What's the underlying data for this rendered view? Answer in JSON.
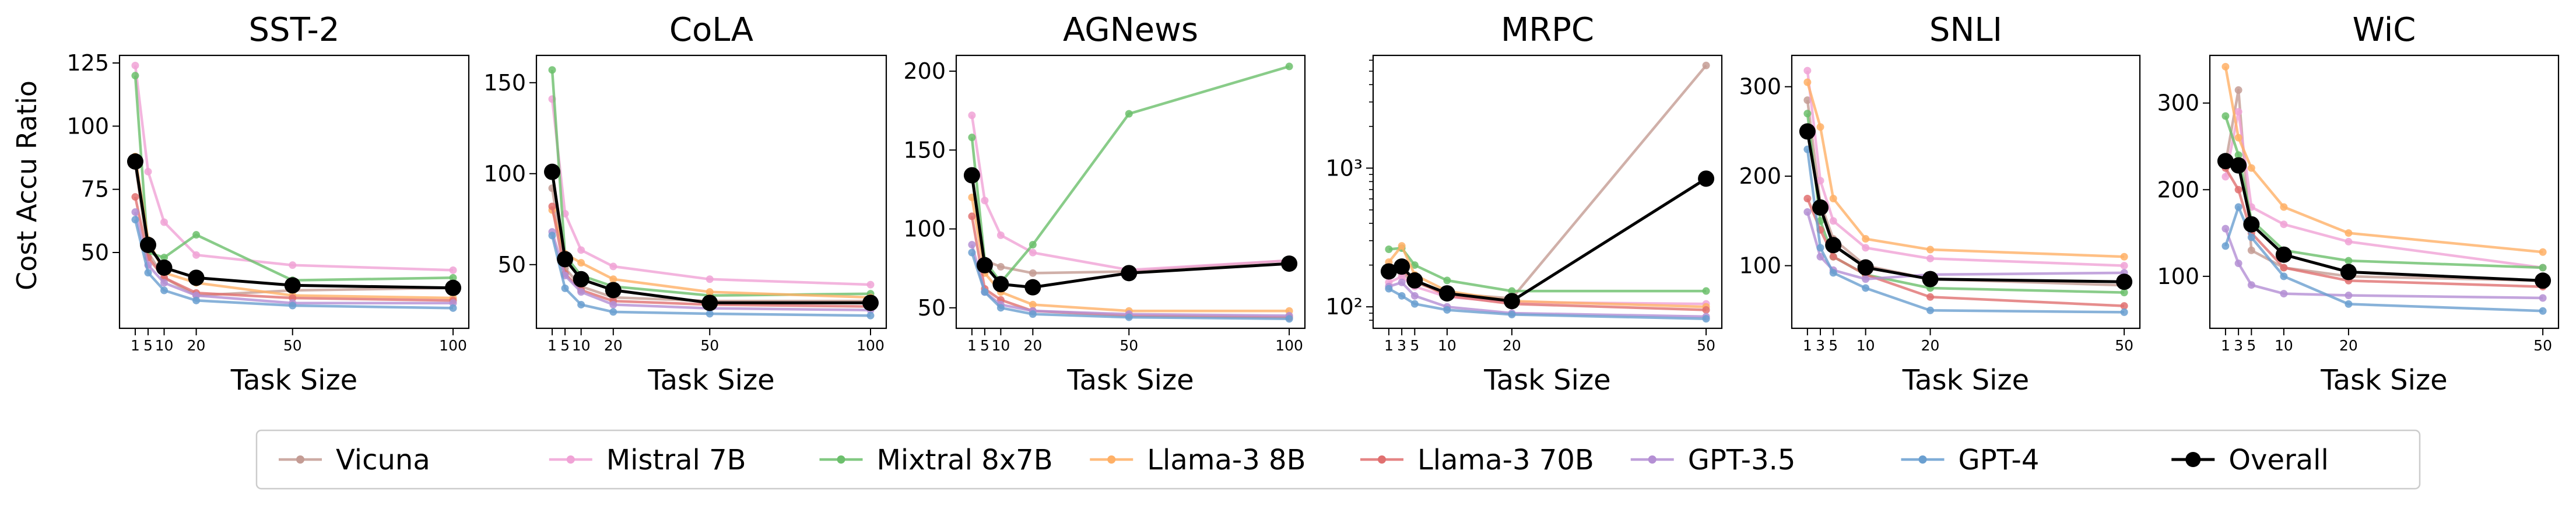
{
  "figure": {
    "shared_ylabel": "Cost Accu Ratio",
    "xlabel": "Task Size"
  },
  "legend": {
    "placement": "bottom-center",
    "entries": [
      {
        "label": "Vicuna",
        "color": "#c49c94"
      },
      {
        "label": "Mistral 7B",
        "color": "#f0a3d6"
      },
      {
        "label": "Mixtral 8x7B",
        "color": "#6cbf6c"
      },
      {
        "label": "Llama-3 8B",
        "color": "#ffb066"
      },
      {
        "label": "Llama-3 70B",
        "color": "#e07070"
      },
      {
        "label": "GPT-3.5",
        "color": "#b48fd4"
      },
      {
        "label": "GPT-4",
        "color": "#6a9fd0"
      },
      {
        "label": "Overall",
        "color": "#000000"
      }
    ]
  },
  "chart_data": [
    {
      "type": "line",
      "title": "SST-2",
      "xlabel": "Task Size",
      "ylabel": "Cost Accu Ratio",
      "x": [
        1,
        5,
        10,
        20,
        50,
        100
      ],
      "xticks": [
        "1",
        "5",
        "10",
        "20",
        "50",
        "100"
      ],
      "ylim": [
        20,
        128
      ],
      "yscale": "linear",
      "yticks": [
        50,
        75,
        100,
        125
      ],
      "ytick_labels": [
        "50",
        "75",
        "100",
        "125"
      ],
      "grid": false,
      "series": [
        {
          "name": "Vicuna",
          "color": "#c49c94",
          "values": [
            85,
            50,
            40,
            33,
            35,
            36
          ]
        },
        {
          "name": "Mistral 7B",
          "color": "#f0a3d6",
          "values": [
            124,
            82,
            62,
            49,
            45,
            43
          ]
        },
        {
          "name": "Mixtral 8x7B",
          "color": "#6cbf6c",
          "values": [
            120,
            50,
            48,
            57,
            39,
            40
          ]
        },
        {
          "name": "Llama-3 8B",
          "color": "#ffb066",
          "values": [
            88,
            55,
            42,
            38,
            33,
            32
          ]
        },
        {
          "name": "Llama-3 70B",
          "color": "#e07070",
          "values": [
            72,
            48,
            40,
            34,
            32,
            31
          ]
        },
        {
          "name": "GPT-3.5",
          "color": "#b48fd4",
          "values": [
            66,
            45,
            38,
            33,
            30,
            30
          ]
        },
        {
          "name": "GPT-4",
          "color": "#6a9fd0",
          "values": [
            63,
            42,
            35,
            31,
            29,
            28
          ]
        },
        {
          "name": "Overall",
          "color": "#000000",
          "values": [
            86,
            53,
            44,
            40,
            37,
            36
          ]
        }
      ]
    },
    {
      "type": "line",
      "title": "CoLA",
      "xlabel": "Task Size",
      "ylabel": "",
      "x": [
        1,
        5,
        10,
        20,
        50,
        100
      ],
      "xticks": [
        "1",
        "5",
        "10",
        "20",
        "50",
        "100"
      ],
      "ylim": [
        15,
        165
      ],
      "yscale": "linear",
      "yticks": [
        50,
        100,
        150
      ],
      "ytick_labels": [
        "50",
        "100",
        "150"
      ],
      "grid": false,
      "series": [
        {
          "name": "Vicuna",
          "color": "#c49c94",
          "values": [
            92,
            48,
            38,
            32,
            30,
            30
          ]
        },
        {
          "name": "Mistral 7B",
          "color": "#f0a3d6",
          "values": [
            141,
            78,
            58,
            49,
            42,
            39
          ]
        },
        {
          "name": "Mixtral 8x7B",
          "color": "#6cbf6c",
          "values": [
            157,
            55,
            44,
            38,
            33,
            34
          ]
        },
        {
          "name": "Llama-3 8B",
          "color": "#ffb066",
          "values": [
            80,
            56,
            51,
            42,
            35,
            32
          ]
        },
        {
          "name": "Llama-3 70B",
          "color": "#e07070",
          "values": [
            82,
            45,
            36,
            30,
            28,
            27
          ]
        },
        {
          "name": "GPT-3.5",
          "color": "#b48fd4",
          "values": [
            68,
            44,
            35,
            28,
            26,
            25
          ]
        },
        {
          "name": "GPT-4",
          "color": "#6a9fd0",
          "values": [
            66,
            37,
            28,
            24,
            23,
            22
          ]
        },
        {
          "name": "Overall",
          "color": "#000000",
          "values": [
            101,
            53,
            42,
            36,
            29,
            29
          ]
        }
      ]
    },
    {
      "type": "line",
      "title": "AGNews",
      "xlabel": "Task Size",
      "ylabel": "",
      "x": [
        1,
        5,
        10,
        20,
        50,
        100
      ],
      "xticks": [
        "1",
        "5",
        "10",
        "20",
        "50",
        "100"
      ],
      "ylim": [
        37,
        210
      ],
      "yscale": "linear",
      "yticks": [
        50,
        100,
        150,
        200
      ],
      "ytick_labels": [
        "50",
        "100",
        "150",
        "200"
      ],
      "grid": false,
      "series": [
        {
          "name": "Vicuna",
          "color": "#c49c94",
          "values": [
            135,
            80,
            76,
            72,
            73,
            80
          ]
        },
        {
          "name": "Mistral 7B",
          "color": "#f0a3d6",
          "values": [
            172,
            118,
            96,
            85,
            74,
            80
          ]
        },
        {
          "name": "Mixtral 8x7B",
          "color": "#6cbf6c",
          "values": [
            158,
            80,
            66,
            90,
            173,
            203
          ]
        },
        {
          "name": "Llama-3 8B",
          "color": "#ffb066",
          "values": [
            120,
            72,
            60,
            52,
            48,
            48
          ]
        },
        {
          "name": "Llama-3 70B",
          "color": "#e07070",
          "values": [
            108,
            62,
            55,
            48,
            45,
            44
          ]
        },
        {
          "name": "GPT-3.5",
          "color": "#b48fd4",
          "values": [
            90,
            60,
            52,
            48,
            46,
            45
          ]
        },
        {
          "name": "GPT-4",
          "color": "#6a9fd0",
          "values": [
            85,
            60,
            50,
            46,
            44,
            43
          ]
        },
        {
          "name": "Overall",
          "color": "#000000",
          "values": [
            134,
            77,
            65,
            63,
            72,
            78
          ]
        }
      ]
    },
    {
      "type": "line",
      "title": "MRPC",
      "xlabel": "Task Size",
      "ylabel": "",
      "x": [
        1,
        3,
        5,
        10,
        20,
        50
      ],
      "xticks": [
        "1",
        "3",
        "5",
        "10",
        "20",
        "50"
      ],
      "ylim": [
        70,
        6500
      ],
      "yscale": "log",
      "yticks": [
        100,
        1000
      ],
      "ytick_labels": [
        "10²",
        "10³"
      ],
      "grid": false,
      "series": [
        {
          "name": "Vicuna",
          "color": "#c49c94",
          "values": [
            185,
            175,
            150,
            125,
            115,
            5500
          ]
        },
        {
          "name": "Mistral 7B",
          "color": "#f0a3d6",
          "values": [
            150,
            165,
            140,
            118,
            108,
            105
          ]
        },
        {
          "name": "Mixtral 8x7B",
          "color": "#6cbf6c",
          "values": [
            260,
            265,
            200,
            155,
            130,
            130
          ]
        },
        {
          "name": "Llama-3 8B",
          "color": "#ffb066",
          "values": [
            210,
            275,
            170,
            130,
            110,
            100
          ]
        },
        {
          "name": "Llama-3 70B",
          "color": "#e07070",
          "values": [
            170,
            185,
            155,
            120,
            105,
            95
          ]
        },
        {
          "name": "GPT-3.5",
          "color": "#b48fd4",
          "values": [
            140,
            150,
            120,
            100,
            90,
            85
          ]
        },
        {
          "name": "GPT-4",
          "color": "#6a9fd0",
          "values": [
            135,
            120,
            105,
            95,
            88,
            82
          ]
        },
        {
          "name": "Overall",
          "color": "#000000",
          "values": [
            180,
            195,
            155,
            125,
            110,
            840
          ]
        }
      ]
    },
    {
      "type": "line",
      "title": "SNLI",
      "xlabel": "Task Size",
      "ylabel": "",
      "x": [
        1,
        3,
        5,
        10,
        20,
        50
      ],
      "xticks": [
        "1",
        "3",
        "5",
        "10",
        "20",
        "50"
      ],
      "ylim": [
        30,
        335
      ],
      "yscale": "linear",
      "yticks": [
        100,
        200,
        300
      ],
      "ytick_labels": [
        "100",
        "200",
        "300"
      ],
      "grid": false,
      "series": [
        {
          "name": "Vicuna",
          "color": "#c49c94",
          "values": [
            285,
            170,
            130,
            100,
            85,
            78
          ]
        },
        {
          "name": "Mistral 7B",
          "color": "#f0a3d6",
          "values": [
            318,
            195,
            150,
            120,
            108,
            100
          ]
        },
        {
          "name": "Mixtral 8x7B",
          "color": "#6cbf6c",
          "values": [
            270,
            150,
            110,
            90,
            75,
            70
          ]
        },
        {
          "name": "Llama-3 8B",
          "color": "#ffb066",
          "values": [
            305,
            255,
            175,
            130,
            118,
            110
          ]
        },
        {
          "name": "Llama-3 70B",
          "color": "#e07070",
          "values": [
            175,
            140,
            110,
            90,
            65,
            55
          ]
        },
        {
          "name": "GPT-3.5",
          "color": "#b48fd4",
          "values": [
            160,
            110,
            95,
            85,
            90,
            92
          ]
        },
        {
          "name": "GPT-4",
          "color": "#6a9fd0",
          "values": [
            230,
            120,
            92,
            75,
            50,
            48
          ]
        },
        {
          "name": "Overall",
          "color": "#000000",
          "values": [
            250,
            165,
            123,
            98,
            85,
            82
          ]
        }
      ]
    },
    {
      "type": "line",
      "title": "WiC",
      "xlabel": "Task Size",
      "ylabel": "",
      "x": [
        1,
        3,
        5,
        10,
        20,
        50
      ],
      "xticks": [
        "1",
        "3",
        "5",
        "10",
        "20",
        "50"
      ],
      "ylim": [
        40,
        355
      ],
      "yscale": "linear",
      "yticks": [
        100,
        200,
        300
      ],
      "ytick_labels": [
        "100",
        "200",
        "300"
      ],
      "grid": false,
      "series": [
        {
          "name": "Vicuna",
          "color": "#c49c94",
          "values": [
            230,
            315,
            130,
            110,
            100,
            95
          ]
        },
        {
          "name": "Mistral 7B",
          "color": "#f0a3d6",
          "values": [
            215,
            290,
            180,
            160,
            140,
            110
          ]
        },
        {
          "name": "Mixtral 8x7B",
          "color": "#6cbf6c",
          "values": [
            285,
            240,
            165,
            130,
            118,
            110
          ]
        },
        {
          "name": "Llama-3 8B",
          "color": "#ffb066",
          "values": [
            342,
            260,
            225,
            180,
            150,
            128
          ]
        },
        {
          "name": "Llama-3 70B",
          "color": "#e07070",
          "values": [
            225,
            200,
            150,
            110,
            95,
            88
          ]
        },
        {
          "name": "GPT-3.5",
          "color": "#b48fd4",
          "values": [
            155,
            115,
            90,
            80,
            78,
            75
          ]
        },
        {
          "name": "GPT-4",
          "color": "#6a9fd0",
          "values": [
            135,
            180,
            145,
            100,
            68,
            60
          ]
        },
        {
          "name": "Overall",
          "color": "#000000",
          "values": [
            233,
            228,
            160,
            125,
            105,
            95
          ]
        }
      ]
    }
  ]
}
